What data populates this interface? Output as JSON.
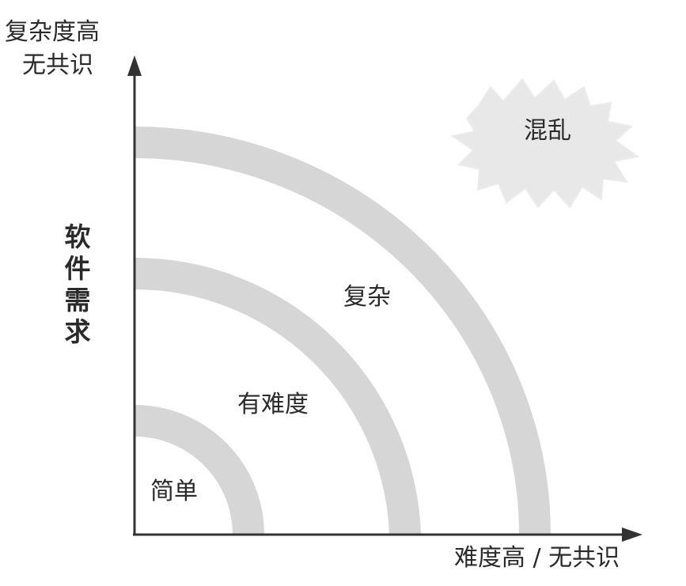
{
  "y_axis_top_label": {
    "line1": "复杂度高",
    "line2": "无共识"
  },
  "y_axis_title": "软件需求",
  "x_axis_title": "难度高 / 无共识",
  "zones": {
    "simple": "简单",
    "hard": "有难度",
    "complex": "复杂",
    "chaos": "混乱"
  },
  "colors": {
    "band": "#d6d6d6",
    "axis": "#333333",
    "cloud": "#e8e8e8",
    "text": "#2a2a2a"
  }
}
